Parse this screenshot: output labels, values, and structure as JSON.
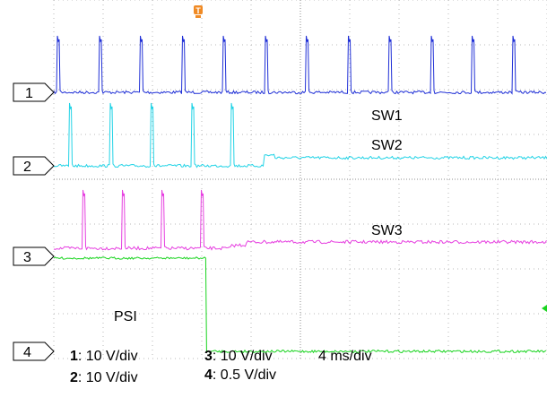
{
  "chart_data": {
    "type": "line",
    "title": "",
    "xlabel": "",
    "ylabel": "",
    "grid": true,
    "timebase": "4 ms/div",
    "divisions": {
      "x": 10,
      "y": 8
    },
    "channels": [
      {
        "number": "1",
        "scale": "10 V/div",
        "color": "#1f2fd6",
        "annotation": "SW1",
        "switching": "pulse train continues over full record"
      },
      {
        "number": "2",
        "scale": "10 V/div",
        "color": "#22d3e6",
        "annotation": "SW2",
        "switching": "pulses stop at ~4.2 div"
      },
      {
        "number": "3",
        "scale": "10 V/div",
        "color": "#e63fe0",
        "annotation": "SW3",
        "switching": "pulses stop at ~3.8 div"
      },
      {
        "number": "4",
        "scale": "0.5 V/div",
        "color": "#19d41f",
        "annotation": "PSI",
        "switching": "steps high to low at ~3.7 div"
      }
    ]
  },
  "scale_labels": {
    "ch1_num": "1",
    "ch1_text": ": 10 V/div",
    "ch2_num": "2",
    "ch2_text": ": 10 V/div",
    "ch3_num": "3",
    "ch3_text": ": 10 V/div",
    "ch4_num": "4",
    "ch4_text": ": 0.5 V/div",
    "timebase": "4 ms/div"
  }
}
